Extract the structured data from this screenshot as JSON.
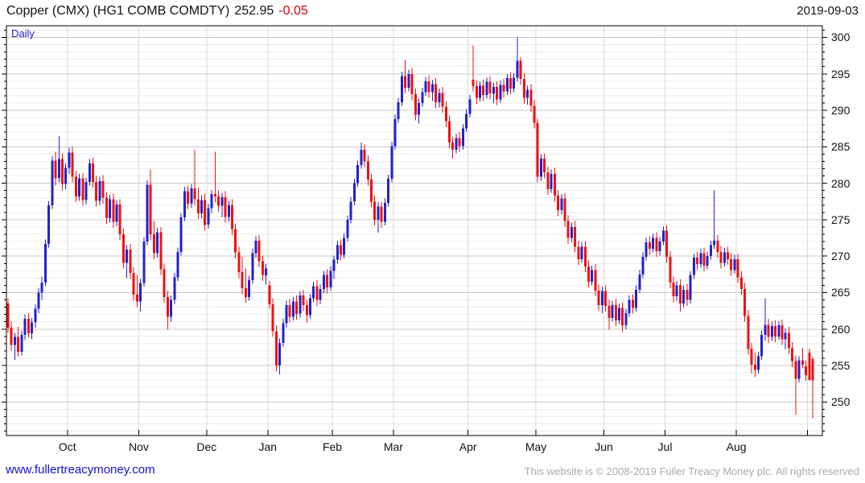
{
  "header": {
    "instrument": "Copper (CMX) (HG1 COMB COMDTY)",
    "last_price": "252.95",
    "change": "-0.05",
    "date": "2019-09-03"
  },
  "chart": {
    "mode_label": "Daily"
  },
  "footer": {
    "site_link": "www.fullertreacymoney.com",
    "copyright": "This website is © 2008-2019 Fuller Treacy Money plc. All rights reserved"
  },
  "chart_data": {
    "type": "candlestick",
    "title": "Copper (CMX) (HG1 COMB COMDTY)",
    "period": "Daily",
    "last_price": 252.95,
    "change": -0.05,
    "y_axis": {
      "min": 245.4,
      "max": 301.6,
      "major_ticks": [
        250,
        255,
        260,
        265,
        270,
        275,
        280,
        285,
        290,
        295,
        300
      ],
      "minor_step": 1
    },
    "x_axis": {
      "months": [
        {
          "label": "Oct",
          "day": 18
        },
        {
          "label": "Nov",
          "day": 39
        },
        {
          "label": "Dec",
          "day": 59
        },
        {
          "label": "Jan",
          "day": 77
        },
        {
          "label": "Feb",
          "day": 96
        },
        {
          "label": "Mar",
          "day": 114
        },
        {
          "label": "Apr",
          "day": 136
        },
        {
          "label": "May",
          "day": 156
        },
        {
          "label": "Jun",
          "day": 176
        },
        {
          "label": "Jul",
          "day": 194
        },
        {
          "label": "Aug",
          "day": 215
        },
        {
          "label": "",
          "day": 236
        }
      ]
    },
    "colors": {
      "up": "#2222cc",
      "down": "#ee1111",
      "grid_major": "#c8c8c8",
      "grid_minor": "#ececec",
      "grid_month": "#d8d8d8",
      "axis": "#000000"
    },
    "candles": [
      [
        263.5,
        264.2,
        259.5,
        260.2
      ],
      [
        260.2,
        261.0,
        257.0,
        257.8
      ],
      [
        257.8,
        259.5,
        255.8,
        258.9
      ],
      [
        258.9,
        260.3,
        256.2,
        256.9
      ],
      [
        256.9,
        259.8,
        256.4,
        259.2
      ],
      [
        259.2,
        262.0,
        258.5,
        261.4
      ],
      [
        261.4,
        262.2,
        258.8,
        259.4
      ],
      [
        259.4,
        261.5,
        258.6,
        260.9
      ],
      [
        260.9,
        263.4,
        260.2,
        262.8
      ],
      [
        262.8,
        265.6,
        262.2,
        265.0
      ],
      [
        265.0,
        267.2,
        264.0,
        266.4
      ],
      [
        266.4,
        272.3,
        265.9,
        271.7
      ],
      [
        271.7,
        277.6,
        271.2,
        277.0
      ],
      [
        277.0,
        283.7,
        276.5,
        283.1
      ],
      [
        283.1,
        284.3,
        279.7,
        280.7
      ],
      [
        280.7,
        286.5,
        280.1,
        283.3
      ],
      [
        283.3,
        284.1,
        279.0,
        279.9
      ],
      [
        279.9,
        282.7,
        279.2,
        282.1
      ],
      [
        282.1,
        284.9,
        281.3,
        284.2
      ],
      [
        284.2,
        285.0,
        280.1,
        280.9
      ],
      [
        280.9,
        281.7,
        277.4,
        278.2
      ],
      [
        278.2,
        281.3,
        277.6,
        280.7
      ],
      [
        280.7,
        281.4,
        276.9,
        277.7
      ],
      [
        277.7,
        280.8,
        277.1,
        280.2
      ],
      [
        280.2,
        283.3,
        279.7,
        282.7
      ],
      [
        282.7,
        283.5,
        279.4,
        280.2
      ],
      [
        280.2,
        281.0,
        276.8,
        277.6
      ],
      [
        277.6,
        280.9,
        277.0,
        280.3
      ],
      [
        280.3,
        281.1,
        277.2,
        278.0
      ],
      [
        278.0,
        278.8,
        274.4,
        275.2
      ],
      [
        275.2,
        278.4,
        274.6,
        277.8
      ],
      [
        277.8,
        278.6,
        273.9,
        274.7
      ],
      [
        274.7,
        277.7,
        274.1,
        277.1
      ],
      [
        277.1,
        277.8,
        272.2,
        273.0
      ],
      [
        273.0,
        273.8,
        268.3,
        269.1
      ],
      [
        269.1,
        271.5,
        267.0,
        270.9
      ],
      [
        270.9,
        271.7,
        266.9,
        267.7
      ],
      [
        267.7,
        268.5,
        263.9,
        264.7
      ],
      [
        264.7,
        267.4,
        263.0,
        263.8
      ],
      [
        263.8,
        266.9,
        262.4,
        266.3
      ],
      [
        266.3,
        272.6,
        265.8,
        272.0
      ],
      [
        272.0,
        280.4,
        271.5,
        279.8
      ],
      [
        279.8,
        281.9,
        272.2,
        273.0
      ],
      [
        273.0,
        274.8,
        269.6,
        270.4
      ],
      [
        270.4,
        273.9,
        269.8,
        273.3
      ],
      [
        273.3,
        274.0,
        267.4,
        268.2
      ],
      [
        268.2,
        269.0,
        263.6,
        264.4
      ],
      [
        264.4,
        265.2,
        259.9,
        261.7
      ],
      [
        261.7,
        264.6,
        261.0,
        264.0
      ],
      [
        264.0,
        267.7,
        263.4,
        267.1
      ],
      [
        267.1,
        271.2,
        266.6,
        270.6
      ],
      [
        270.6,
        275.9,
        270.1,
        275.3
      ],
      [
        275.3,
        279.5,
        274.8,
        278.9
      ],
      [
        278.9,
        279.7,
        276.4,
        277.2
      ],
      [
        277.2,
        279.9,
        276.6,
        279.3
      ],
      [
        279.3,
        284.6,
        277.0,
        277.8
      ],
      [
        277.8,
        279.4,
        275.1,
        275.9
      ],
      [
        275.9,
        278.3,
        275.2,
        277.7
      ],
      [
        277.7,
        278.5,
        273.5,
        274.3
      ],
      [
        274.3,
        277.2,
        273.8,
        276.6
      ],
      [
        276.6,
        279.1,
        275.9,
        278.5
      ],
      [
        278.5,
        284.3,
        277.4,
        278.2
      ],
      [
        278.2,
        279.0,
        276.1,
        276.9
      ],
      [
        276.9,
        278.7,
        275.3,
        278.1
      ],
      [
        278.1,
        278.9,
        274.6,
        275.4
      ],
      [
        275.4,
        277.6,
        274.7,
        277.0
      ],
      [
        277.0,
        277.8,
        272.9,
        273.7
      ],
      [
        273.7,
        274.5,
        269.7,
        270.5
      ],
      [
        270.5,
        271.3,
        267.0,
        267.8
      ],
      [
        267.8,
        269.9,
        264.8,
        265.6
      ],
      [
        265.6,
        268.3,
        263.6,
        264.4
      ],
      [
        264.4,
        267.3,
        263.9,
        266.7
      ],
      [
        266.7,
        271.0,
        266.2,
        270.4
      ],
      [
        270.4,
        272.7,
        269.8,
        272.1
      ],
      [
        272.1,
        272.9,
        268.5,
        269.3
      ],
      [
        269.3,
        270.1,
        266.6,
        267.4
      ],
      [
        267.4,
        268.9,
        266.1,
        268.3
      ],
      [
        266.0,
        266.6,
        262.8,
        263.4
      ],
      [
        263.4,
        264.2,
        258.9,
        259.7
      ],
      [
        259.7,
        260.5,
        254.2,
        255.0
      ],
      [
        255.0,
        258.7,
        253.8,
        258.1
      ],
      [
        258.1,
        261.4,
        257.6,
        260.8
      ],
      [
        260.8,
        263.9,
        260.2,
        263.3
      ],
      [
        263.3,
        264.1,
        260.9,
        261.7
      ],
      [
        261.7,
        264.4,
        261.2,
        263.8
      ],
      [
        263.8,
        264.6,
        261.3,
        262.1
      ],
      [
        262.1,
        265.2,
        261.6,
        264.6
      ],
      [
        264.6,
        265.4,
        262.5,
        263.3
      ],
      [
        263.3,
        264.0,
        260.9,
        261.9
      ],
      [
        261.9,
        264.8,
        261.4,
        264.2
      ],
      [
        264.2,
        266.5,
        263.7,
        265.9
      ],
      [
        265.9,
        266.7,
        263.2,
        264.0
      ],
      [
        264.0,
        266.1,
        263.4,
        265.5
      ],
      [
        265.5,
        268.0,
        264.9,
        267.4
      ],
      [
        267.4,
        268.2,
        264.9,
        265.7
      ],
      [
        265.7,
        268.6,
        265.2,
        268.0
      ],
      [
        268.0,
        270.1,
        266.9,
        269.5
      ],
      [
        269.5,
        272.1,
        269.0,
        271.5
      ],
      [
        271.5,
        272.3,
        269.4,
        270.2
      ],
      [
        270.2,
        273.1,
        269.7,
        272.5
      ],
      [
        272.5,
        275.6,
        272.0,
        275.0
      ],
      [
        275.0,
        278.1,
        274.5,
        277.5
      ],
      [
        277.5,
        280.6,
        277.0,
        280.0
      ],
      [
        280.0,
        283.1,
        279.5,
        282.5
      ],
      [
        282.5,
        285.6,
        282.0,
        284.6
      ],
      [
        284.6,
        285.3,
        282.2,
        283.0
      ],
      [
        283.0,
        283.8,
        279.7,
        280.5
      ],
      [
        280.5,
        281.3,
        276.7,
        277.5
      ],
      [
        277.5,
        278.3,
        274.2,
        275.0
      ],
      [
        275.0,
        277.4,
        273.2,
        276.8
      ],
      [
        276.8,
        277.5,
        273.9,
        274.7
      ],
      [
        274.7,
        277.9,
        274.2,
        277.3
      ],
      [
        277.3,
        281.2,
        276.8,
        280.6
      ],
      [
        280.6,
        285.7,
        280.1,
        285.1
      ],
      [
        285.1,
        289.4,
        284.6,
        288.8
      ],
      [
        288.8,
        291.7,
        288.3,
        291.1
      ],
      [
        291.1,
        295.3,
        290.6,
        294.7
      ],
      [
        294.7,
        296.9,
        292.3,
        293.1
      ],
      [
        293.1,
        295.6,
        292.6,
        295.0
      ],
      [
        295.0,
        295.8,
        291.4,
        292.2
      ],
      [
        292.2,
        293.0,
        288.6,
        289.4
      ],
      [
        289.4,
        291.6,
        288.2,
        291.0
      ],
      [
        291.0,
        293.1,
        290.5,
        292.5
      ],
      [
        292.5,
        294.6,
        292.0,
        294.0
      ],
      [
        294.0,
        294.8,
        291.7,
        292.5
      ],
      [
        292.5,
        294.2,
        291.3,
        293.6
      ],
      [
        293.6,
        294.4,
        290.3,
        291.1
      ],
      [
        291.1,
        293.0,
        290.4,
        292.4
      ],
      [
        292.4,
        293.2,
        289.7,
        290.5
      ],
      [
        290.5,
        291.3,
        287.7,
        288.5
      ],
      [
        288.5,
        289.3,
        284.8,
        285.6
      ],
      [
        285.6,
        286.4,
        283.4,
        284.6
      ],
      [
        284.6,
        286.8,
        284.1,
        286.2
      ],
      [
        286.2,
        287.0,
        284.3,
        285.1
      ],
      [
        285.1,
        288.1,
        284.6,
        287.5
      ],
      [
        287.5,
        290.1,
        287.0,
        289.5
      ],
      [
        289.5,
        292.1,
        289.0,
        291.5
      ],
      [
        294.2,
        298.9,
        292.6,
        293.3
      ],
      [
        293.3,
        294.1,
        290.9,
        291.7
      ],
      [
        291.7,
        294.0,
        291.2,
        293.4
      ],
      [
        293.4,
        294.2,
        291.3,
        292.1
      ],
      [
        292.1,
        294.5,
        291.6,
        293.9
      ],
      [
        293.9,
        294.7,
        291.5,
        292.3
      ],
      [
        292.3,
        293.8,
        291.0,
        293.2
      ],
      [
        293.2,
        294.0,
        290.7,
        291.5
      ],
      [
        291.5,
        294.1,
        291.0,
        293.5
      ],
      [
        293.5,
        294.3,
        291.8,
        292.6
      ],
      [
        292.6,
        295.0,
        292.1,
        294.4
      ],
      [
        294.4,
        295.2,
        292.2,
        293.0
      ],
      [
        293.0,
        295.1,
        292.5,
        294.5
      ],
      [
        294.5,
        300.1,
        293.9,
        296.8
      ],
      [
        296.8,
        297.3,
        293.5,
        294.3
      ],
      [
        294.3,
        295.1,
        290.9,
        291.7
      ],
      [
        291.7,
        293.4,
        290.8,
        292.8
      ],
      [
        292.8,
        293.6,
        289.8,
        290.6
      ],
      [
        290.6,
        291.4,
        287.5,
        288.3
      ],
      [
        288.3,
        288.9,
        280.1,
        280.9
      ],
      [
        280.9,
        284.0,
        280.3,
        283.4
      ],
      [
        283.4,
        284.1,
        280.7,
        281.5
      ],
      [
        281.5,
        282.3,
        278.4,
        279.2
      ],
      [
        279.2,
        281.9,
        278.7,
        281.3
      ],
      [
        281.3,
        282.1,
        277.5,
        278.3
      ],
      [
        278.3,
        279.1,
        275.5,
        276.3
      ],
      [
        276.3,
        278.5,
        275.7,
        277.9
      ],
      [
        277.9,
        278.7,
        274.0,
        274.8
      ],
      [
        274.8,
        275.6,
        271.7,
        272.5
      ],
      [
        272.5,
        274.6,
        271.9,
        274.0
      ],
      [
        274.0,
        274.8,
        270.5,
        271.3
      ],
      [
        271.3,
        272.1,
        268.8,
        269.6
      ],
      [
        269.6,
        271.9,
        269.1,
        271.3
      ],
      [
        271.3,
        272.0,
        267.8,
        268.6
      ],
      [
        268.6,
        269.4,
        265.7,
        266.5
      ],
      [
        266.5,
        268.7,
        266.0,
        268.1
      ],
      [
        268.1,
        268.9,
        264.5,
        265.3
      ],
      [
        265.3,
        266.1,
        262.5,
        263.3
      ],
      [
        263.3,
        265.8,
        262.2,
        265.2
      ],
      [
        265.2,
        266.0,
        262.4,
        263.2
      ],
      [
        263.2,
        264.0,
        259.9,
        261.5
      ],
      [
        261.5,
        263.9,
        261.0,
        263.3
      ],
      [
        263.3,
        264.1,
        260.4,
        261.2
      ],
      [
        261.2,
        263.5,
        260.7,
        262.9
      ],
      [
        262.9,
        263.7,
        259.6,
        260.5
      ],
      [
        260.5,
        262.8,
        260.0,
        262.2
      ],
      [
        262.2,
        264.6,
        261.7,
        264.0
      ],
      [
        264.0,
        264.8,
        262.1,
        262.9
      ],
      [
        262.9,
        266.0,
        262.4,
        265.4
      ],
      [
        265.4,
        268.1,
        264.9,
        267.5
      ],
      [
        267.5,
        270.5,
        267.0,
        269.9
      ],
      [
        269.9,
        272.5,
        269.4,
        271.9
      ],
      [
        271.9,
        272.7,
        270.2,
        271.0
      ],
      [
        271.0,
        273.1,
        270.5,
        272.5
      ],
      [
        272.5,
        273.3,
        269.9,
        270.7
      ],
      [
        270.7,
        272.6,
        270.1,
        272.0
      ],
      [
        272.0,
        274.1,
        271.5,
        273.5
      ],
      [
        273.5,
        274.3,
        269.1,
        269.9
      ],
      [
        269.9,
        270.7,
        265.6,
        266.4
      ],
      [
        266.4,
        267.2,
        263.7,
        264.5
      ],
      [
        264.5,
        266.6,
        263.9,
        266.0
      ],
      [
        266.0,
        266.8,
        262.4,
        263.5
      ],
      [
        263.5,
        266.0,
        263.0,
        265.4
      ],
      [
        265.4,
        266.2,
        263.2,
        264.0
      ],
      [
        264.0,
        267.9,
        263.5,
        267.4
      ],
      [
        267.4,
        270.3,
        266.9,
        269.8
      ],
      [
        269.8,
        270.6,
        268.1,
        268.9
      ],
      [
        268.9,
        271.0,
        268.4,
        270.4
      ],
      [
        270.4,
        271.2,
        267.9,
        268.7
      ],
      [
        268.7,
        270.6,
        268.2,
        270.0
      ],
      [
        270.0,
        272.1,
        269.5,
        271.5
      ],
      [
        271.5,
        279.0,
        271.0,
        272.1
      ],
      [
        272.1,
        272.9,
        269.8,
        270.6
      ],
      [
        270.6,
        271.4,
        268.3,
        269.1
      ],
      [
        269.1,
        271.1,
        268.6,
        270.5
      ],
      [
        270.5,
        271.3,
        268.8,
        269.6
      ],
      [
        269.6,
        270.4,
        267.3,
        268.1
      ],
      [
        268.1,
        270.2,
        267.6,
        269.6
      ],
      [
        269.6,
        270.3,
        266.3,
        267.1
      ],
      [
        267.1,
        267.9,
        264.7,
        265.5
      ],
      [
        265.5,
        266.3,
        261.0,
        261.8
      ],
      [
        261.8,
        262.6,
        256.5,
        257.3
      ],
      [
        257.3,
        258.1,
        253.9,
        255.1
      ],
      [
        255.1,
        256.8,
        253.4,
        254.4
      ],
      [
        254.4,
        256.9,
        253.9,
        256.3
      ],
      [
        256.3,
        259.8,
        255.8,
        259.2
      ],
      [
        259.2,
        264.2,
        258.4,
        260.6
      ],
      [
        260.6,
        261.4,
        258.1,
        258.9
      ],
      [
        258.9,
        261.0,
        258.4,
        260.4
      ],
      [
        260.4,
        261.2,
        258.2,
        259.0
      ],
      [
        259.0,
        261.1,
        258.5,
        260.5
      ],
      [
        260.5,
        261.3,
        257.8,
        258.6
      ],
      [
        258.6,
        260.1,
        257.2,
        259.5
      ],
      [
        259.5,
        260.3,
        256.6,
        257.4
      ],
      [
        257.4,
        258.2,
        254.8,
        255.6
      ],
      [
        255.6,
        256.4,
        248.2,
        253.2
      ],
      [
        253.2,
        256.3,
        252.7,
        255.7
      ],
      [
        255.7,
        257.4,
        254.6,
        255.1
      ],
      [
        254.9,
        255.7,
        252.9,
        253.7
      ],
      [
        256.8,
        257.3,
        252.9,
        253.0
      ],
      [
        255.9,
        256.2,
        247.8,
        252.95
      ]
    ]
  }
}
